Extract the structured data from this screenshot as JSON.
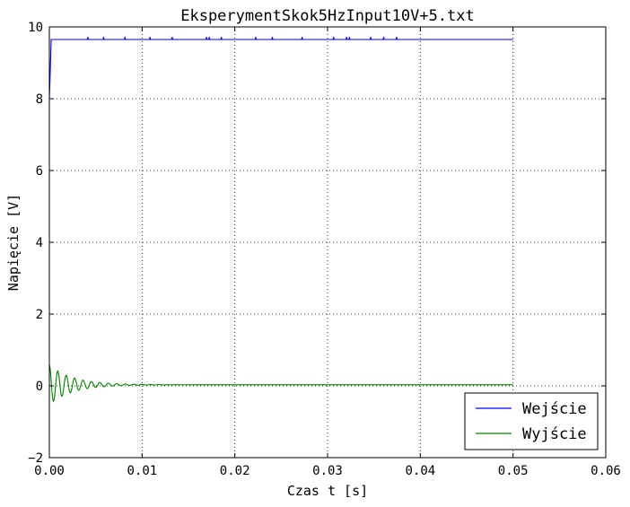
{
  "chart_data": {
    "type": "line",
    "title": "EksperymentSkok5HzInput10V+5.txt",
    "xlabel": "Czas t [s]",
    "ylabel": "Napięcie [V]",
    "xlim": [
      0.0,
      0.06
    ],
    "ylim": [
      -2,
      10
    ],
    "xticks": [
      0.0,
      0.01,
      0.02,
      0.03,
      0.04,
      0.05,
      0.06
    ],
    "xtick_labels": [
      "0.00",
      "0.01",
      "0.02",
      "0.03",
      "0.04",
      "0.05",
      "0.06"
    ],
    "yticks": [
      -2,
      0,
      2,
      4,
      6,
      8,
      10
    ],
    "ytick_labels": [
      "−2",
      "0",
      "2",
      "4",
      "6",
      "8",
      "10"
    ],
    "grid": true,
    "legend_position": "lower-right",
    "series": [
      {
        "name": "Wejście",
        "color": "#0000ff",
        "points": [
          [
            0.0,
            8.0
          ],
          [
            0.0002,
            9.65
          ],
          [
            0.0041,
            9.65
          ],
          [
            0.00415,
            9.72
          ],
          [
            0.0042,
            9.65
          ],
          [
            0.0058,
            9.65
          ],
          [
            0.00585,
            9.72
          ],
          [
            0.0059,
            9.65
          ],
          [
            0.0081,
            9.65
          ],
          [
            0.00815,
            9.72
          ],
          [
            0.0082,
            9.65
          ],
          [
            0.0108,
            9.65
          ],
          [
            0.01085,
            9.72
          ],
          [
            0.0109,
            9.65
          ],
          [
            0.0132,
            9.65
          ],
          [
            0.01325,
            9.72
          ],
          [
            0.0133,
            9.65
          ],
          [
            0.0169,
            9.65
          ],
          [
            0.01695,
            9.72
          ],
          [
            0.017,
            9.65
          ],
          [
            0.0172,
            9.65
          ],
          [
            0.01725,
            9.72
          ],
          [
            0.0173,
            9.65
          ],
          [
            0.0185,
            9.65
          ],
          [
            0.01855,
            9.72
          ],
          [
            0.0186,
            9.65
          ],
          [
            0.0222,
            9.65
          ],
          [
            0.02225,
            9.72
          ],
          [
            0.0223,
            9.65
          ],
          [
            0.024,
            9.65
          ],
          [
            0.02405,
            9.72
          ],
          [
            0.0241,
            9.65
          ],
          [
            0.0272,
            9.65
          ],
          [
            0.02725,
            9.72
          ],
          [
            0.0273,
            9.65
          ],
          [
            0.0306,
            9.65
          ],
          [
            0.03065,
            9.72
          ],
          [
            0.0307,
            9.65
          ],
          [
            0.032,
            9.65
          ],
          [
            0.03205,
            9.72
          ],
          [
            0.0321,
            9.65
          ],
          [
            0.0323,
            9.65
          ],
          [
            0.03235,
            9.72
          ],
          [
            0.0324,
            9.65
          ],
          [
            0.0346,
            9.65
          ],
          [
            0.03465,
            9.72
          ],
          [
            0.0347,
            9.65
          ],
          [
            0.036,
            9.65
          ],
          [
            0.03605,
            9.72
          ],
          [
            0.0361,
            9.65
          ],
          [
            0.0374,
            9.65
          ],
          [
            0.03745,
            9.72
          ],
          [
            0.0375,
            9.65
          ],
          [
            0.05,
            9.65
          ]
        ]
      },
      {
        "name": "Wyjście",
        "color": "#008000",
        "decay_model": {
          "y0": 0.58,
          "offset": 0.03,
          "freq_hz": 1100,
          "tau_s": 0.0025,
          "x_start": 0.0,
          "x_end": 0.05
        }
      }
    ]
  }
}
